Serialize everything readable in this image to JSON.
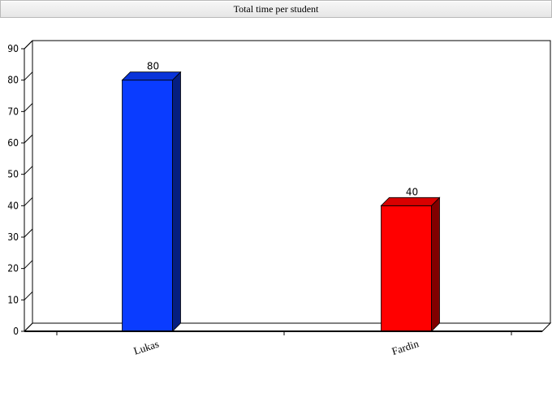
{
  "chart_data": {
    "type": "bar",
    "title": "Total time per student",
    "xlabel": "",
    "ylabel": "",
    "categories": [
      "Lukas",
      "Fardin"
    ],
    "values": [
      80,
      40
    ],
    "colors": [
      "#0a3cff",
      "#ff0000"
    ],
    "ylim": [
      0,
      90
    ],
    "yticks": [
      0,
      10,
      20,
      30,
      40,
      50,
      60,
      70,
      80,
      90
    ],
    "grid": false,
    "legend": "none",
    "style": "3d-bars"
  }
}
